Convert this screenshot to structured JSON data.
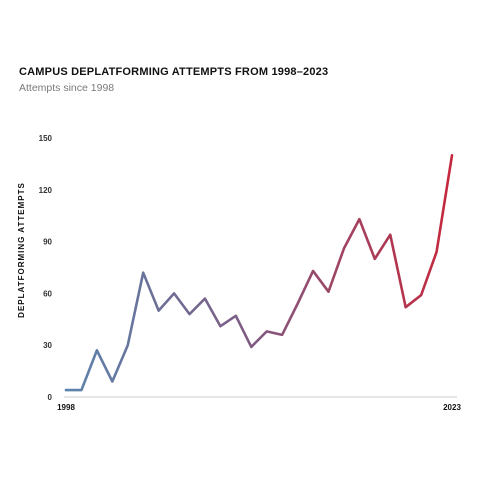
{
  "chart_data": {
    "type": "line",
    "title": "CAMPUS DEPLATFORMING ATTEMPTS FROM 1998–2023",
    "subtitle": "Attempts since 1998",
    "xlabel": "",
    "ylabel": "DEPLATFORMING ATTEMPTS",
    "ylim": [
      0,
      150
    ],
    "yticks": [
      "0",
      "30",
      "60",
      "90",
      "120",
      "150"
    ],
    "xticks": [
      "1998",
      "2023"
    ],
    "grid": false,
    "legend": "none",
    "x": [
      1998,
      1999,
      2000,
      2001,
      2002,
      2003,
      2004,
      2005,
      2006,
      2007,
      2008,
      2009,
      2010,
      2011,
      2012,
      2013,
      2014,
      2015,
      2016,
      2017,
      2018,
      2019,
      2020,
      2021,
      2022,
      2023
    ],
    "series": [
      {
        "name": "",
        "values": [
          4,
          4,
          27,
          9,
          30,
          72,
          50,
          60,
          48,
          57,
          41,
          47,
          29,
          38,
          36,
          54,
          73,
          61,
          86,
          103,
          80,
          94,
          52,
          59,
          84,
          140
        ]
      }
    ],
    "colors": {
      "start": "#5b84ad",
      "middle": "#7d5d85",
      "end": "#c5283d",
      "axis": "#cccccc"
    }
  }
}
